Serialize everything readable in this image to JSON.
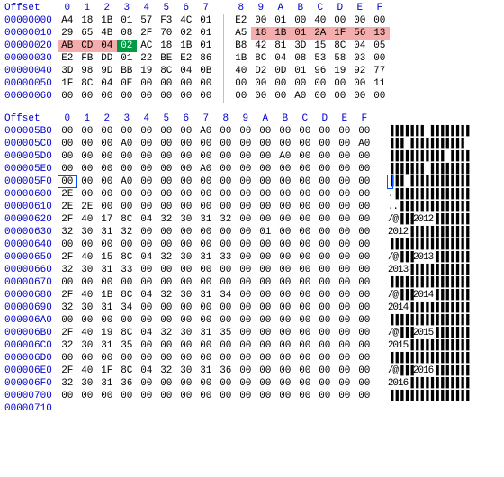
{
  "colors": {
    "offset": "#0000d0",
    "text": "#000000",
    "highlight_red": "#f4acac",
    "highlight_green_bg": "#009944",
    "highlight_green_fg": "#ffffff",
    "cursor_outline": "#0050ff",
    "separator": "#c0c0c0",
    "background": "#ffffff"
  },
  "top_view": {
    "header_label": "Offset",
    "columns": [
      "0",
      "1",
      "2",
      "3",
      "4",
      "5",
      "6",
      "7",
      "8",
      "9",
      "A",
      "B",
      "C",
      "D",
      "E",
      "F"
    ],
    "rows": [
      {
        "offset": "00000000",
        "bytes": [
          "A4",
          "18",
          "1B",
          "01",
          "57",
          "F3",
          "4C",
          "01",
          "",
          "E2",
          "00",
          "01",
          "00",
          "40",
          "00",
          "00",
          "00"
        ]
      },
      {
        "offset": "00000010",
        "bytes": [
          "29",
          "65",
          "4B",
          "08",
          "2F",
          "70",
          "02",
          "01",
          "",
          "A5",
          "18",
          "1B",
          "01",
          "2A",
          "1F",
          "56",
          "13"
        ]
      },
      {
        "offset": "00000020",
        "bytes": [
          "AB",
          "CD",
          "04",
          "02",
          "AC",
          "18",
          "1B",
          "01",
          "",
          "B8",
          "42",
          "81",
          "3D",
          "15",
          "8C",
          "04",
          "05"
        ]
      },
      {
        "offset": "00000030",
        "bytes": [
          "E2",
          "FB",
          "DD",
          "01",
          "22",
          "BE",
          "E2",
          "86",
          "",
          "1B",
          "8C",
          "04",
          "08",
          "53",
          "58",
          "03",
          "00"
        ]
      },
      {
        "offset": "00000040",
        "bytes": [
          "3D",
          "98",
          "9D",
          "BB",
          "19",
          "8C",
          "04",
          "0B",
          "",
          "40",
          "D2",
          "0D",
          "01",
          "96",
          "19",
          "92",
          "77"
        ]
      },
      {
        "offset": "00000050",
        "bytes": [
          "1F",
          "8C",
          "04",
          "0E",
          "00",
          "00",
          "00",
          "00",
          "",
          "00",
          "00",
          "00",
          "00",
          "00",
          "00",
          "00",
          "11"
        ]
      },
      {
        "offset": "00000060",
        "bytes": [
          "00",
          "00",
          "00",
          "00",
          "00",
          "00",
          "00",
          "00",
          "",
          "00",
          "00",
          "00",
          "A0",
          "00",
          "00",
          "00",
          "00"
        ]
      }
    ],
    "highlights_red": [
      {
        "row": 1,
        "cols": [
          9,
          10,
          11,
          12,
          13,
          14,
          15,
          16
        ]
      },
      {
        "row": 2,
        "cols": [
          0,
          1,
          2
        ]
      }
    ],
    "highlights_green": [
      {
        "row": 2,
        "col": 3
      }
    ]
  },
  "bottom_view": {
    "header_label": "Offset",
    "columns": [
      "0",
      "1",
      "2",
      "3",
      "4",
      "5",
      "6",
      "7",
      "8",
      "9",
      "A",
      "B",
      "C",
      "D",
      "E",
      "F"
    ],
    "rows": [
      {
        "offset": "000005B0",
        "bytes": [
          "00",
          "00",
          "00",
          "00",
          "00",
          "00",
          "00",
          "A0",
          "00",
          "00",
          "00",
          "00",
          "00",
          "00",
          "00",
          "00"
        ],
        "ascii": "▐▐▐▐▐▐▐ ▐▐▐▐▐▐▐▐"
      },
      {
        "offset": "000005C0",
        "bytes": [
          "00",
          "00",
          "00",
          "A0",
          "00",
          "00",
          "00",
          "00",
          "00",
          "00",
          "00",
          "00",
          "00",
          "00",
          "00",
          "A0"
        ],
        "ascii": "▐▐▐ ▐▐▐▐▐▐▐▐▐▐▐ "
      },
      {
        "offset": "000005D0",
        "bytes": [
          "00",
          "00",
          "00",
          "00",
          "00",
          "00",
          "00",
          "00",
          "00",
          "00",
          "00",
          "A0",
          "00",
          "00",
          "00",
          "00"
        ],
        "ascii": "▐▐▐▐▐▐▐▐▐▐▐ ▐▐▐▐"
      },
      {
        "offset": "000005E0",
        "bytes": [
          "00",
          "00",
          "00",
          "00",
          "00",
          "00",
          "00",
          "A0",
          "00",
          "00",
          "00",
          "00",
          "00",
          "00",
          "00",
          "00"
        ],
        "ascii": "▐▐▐▐▐▐▐ ▐▐▐▐▐▐▐▐"
      },
      {
        "offset": "000005F0",
        "bytes": [
          "00",
          "00",
          "00",
          "A0",
          "00",
          "00",
          "00",
          "00",
          "00",
          "00",
          "00",
          "00",
          "00",
          "00",
          "00",
          "00"
        ],
        "ascii": "▐▐▐ ▐▐▐▐▐▐▐▐▐▐▐▐",
        "cursor_col": 0,
        "ascii_cursor_pos": 0
      },
      {
        "offset": "00000600",
        "bytes": [
          "2E",
          "00",
          "00",
          "00",
          "00",
          "00",
          "00",
          "00",
          "00",
          "00",
          "00",
          "00",
          "00",
          "00",
          "00",
          "00"
        ],
        "ascii": ".▐▐▐▐▐▐▐▐▐▐▐▐▐▐▐"
      },
      {
        "offset": "00000610",
        "bytes": [
          "2E",
          "2E",
          "00",
          "00",
          "00",
          "00",
          "00",
          "00",
          "00",
          "00",
          "00",
          "00",
          "00",
          "00",
          "00",
          "00"
        ],
        "ascii": "..▐▐▐▐▐▐▐▐▐▐▐▐▐▐"
      },
      {
        "offset": "00000620",
        "bytes": [
          "2F",
          "40",
          "17",
          "8C",
          "04",
          "32",
          "30",
          "31",
          "32",
          "00",
          "00",
          "00",
          "00",
          "00",
          "00",
          "00"
        ],
        "ascii": "/@▐▐▐2012▐▐▐▐▐▐▐"
      },
      {
        "offset": "00000630",
        "bytes": [
          "32",
          "30",
          "31",
          "32",
          "00",
          "00",
          "00",
          "00",
          "00",
          "00",
          "01",
          "00",
          "00",
          "00",
          "00",
          "00"
        ],
        "ascii": "2012▐▐▐▐▐▐▐▐▐▐▐▐"
      },
      {
        "offset": "00000640",
        "bytes": [
          "00",
          "00",
          "00",
          "00",
          "00",
          "00",
          "00",
          "00",
          "00",
          "00",
          "00",
          "00",
          "00",
          "00",
          "00",
          "00"
        ],
        "ascii": "▐▐▐▐▐▐▐▐▐▐▐▐▐▐▐▐"
      },
      {
        "offset": "00000650",
        "bytes": [
          "2F",
          "40",
          "15",
          "8C",
          "04",
          "32",
          "30",
          "31",
          "33",
          "00",
          "00",
          "00",
          "00",
          "00",
          "00",
          "00"
        ],
        "ascii": "/@▐▐▐2013▐▐▐▐▐▐▐"
      },
      {
        "offset": "00000660",
        "bytes": [
          "32",
          "30",
          "31",
          "33",
          "00",
          "00",
          "00",
          "00",
          "00",
          "00",
          "00",
          "00",
          "00",
          "00",
          "00",
          "00"
        ],
        "ascii": "2013▐▐▐▐▐▐▐▐▐▐▐▐"
      },
      {
        "offset": "00000670",
        "bytes": [
          "00",
          "00",
          "00",
          "00",
          "00",
          "00",
          "00",
          "00",
          "00",
          "00",
          "00",
          "00",
          "00",
          "00",
          "00",
          "00"
        ],
        "ascii": "▐▐▐▐▐▐▐▐▐▐▐▐▐▐▐▐"
      },
      {
        "offset": "00000680",
        "bytes": [
          "2F",
          "40",
          "1B",
          "8C",
          "04",
          "32",
          "30",
          "31",
          "34",
          "00",
          "00",
          "00",
          "00",
          "00",
          "00",
          "00"
        ],
        "ascii": "/@▐▐▐2014▐▐▐▐▐▐▐"
      },
      {
        "offset": "00000690",
        "bytes": [
          "32",
          "30",
          "31",
          "34",
          "00",
          "00",
          "00",
          "00",
          "00",
          "00",
          "00",
          "00",
          "00",
          "00",
          "00",
          "00"
        ],
        "ascii": "2014▐▐▐▐▐▐▐▐▐▐▐▐"
      },
      {
        "offset": "000006A0",
        "bytes": [
          "00",
          "00",
          "00",
          "00",
          "00",
          "00",
          "00",
          "00",
          "00",
          "00",
          "00",
          "00",
          "00",
          "00",
          "00",
          "00"
        ],
        "ascii": "▐▐▐▐▐▐▐▐▐▐▐▐▐▐▐▐"
      },
      {
        "offset": "000006B0",
        "bytes": [
          "2F",
          "40",
          "19",
          "8C",
          "04",
          "32",
          "30",
          "31",
          "35",
          "00",
          "00",
          "00",
          "00",
          "00",
          "00",
          "00"
        ],
        "ascii": "/@▐▐▐2015▐▐▐▐▐▐▐"
      },
      {
        "offset": "000006C0",
        "bytes": [
          "32",
          "30",
          "31",
          "35",
          "00",
          "00",
          "00",
          "00",
          "00",
          "00",
          "00",
          "00",
          "00",
          "00",
          "00",
          "00"
        ],
        "ascii": "2015▐▐▐▐▐▐▐▐▐▐▐▐"
      },
      {
        "offset": "000006D0",
        "bytes": [
          "00",
          "00",
          "00",
          "00",
          "00",
          "00",
          "00",
          "00",
          "00",
          "00",
          "00",
          "00",
          "00",
          "00",
          "00",
          "00"
        ],
        "ascii": "▐▐▐▐▐▐▐▐▐▐▐▐▐▐▐▐"
      },
      {
        "offset": "000006E0",
        "bytes": [
          "2F",
          "40",
          "1F",
          "8C",
          "04",
          "32",
          "30",
          "31",
          "36",
          "00",
          "00",
          "00",
          "00",
          "00",
          "00",
          "00"
        ],
        "ascii": "/@▐▐▐2016▐▐▐▐▐▐▐"
      },
      {
        "offset": "000006F0",
        "bytes": [
          "32",
          "30",
          "31",
          "36",
          "00",
          "00",
          "00",
          "00",
          "00",
          "00",
          "00",
          "00",
          "00",
          "00",
          "00",
          "00"
        ],
        "ascii": "2016▐▐▐▐▐▐▐▐▐▐▐▐"
      },
      {
        "offset": "00000700",
        "bytes": [
          "00",
          "00",
          "00",
          "00",
          "00",
          "00",
          "00",
          "00",
          "00",
          "00",
          "00",
          "00",
          "00",
          "00",
          "00",
          "00"
        ],
        "ascii": "▐▐▐▐▐▐▐▐▐▐▐▐▐▐▐▐"
      },
      {
        "offset": "00000710",
        "bytes": [
          "",
          "",
          "",
          "",
          "",
          "",
          "",
          "",
          "",
          "",
          "",
          "",
          "",
          "",
          "",
          ""
        ],
        "ascii": ""
      }
    ]
  }
}
